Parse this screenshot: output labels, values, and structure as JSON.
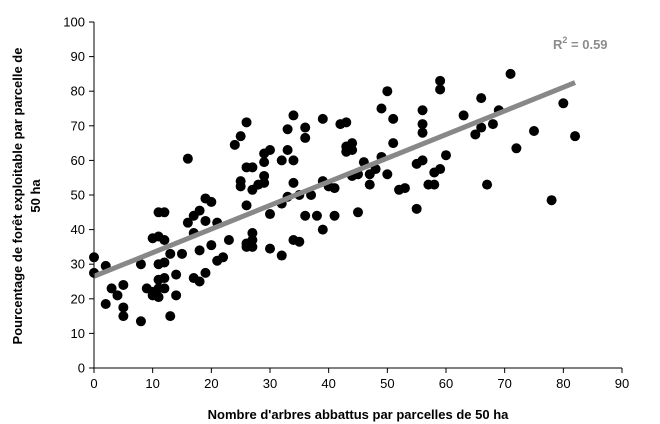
{
  "chart_data": {
    "type": "scatter",
    "xlabel": "Nombre d'arbres abbattus par parcelles de 50 ha",
    "ylabel_lines": [
      "Pourcentage de forêt exploitable par parcelle de",
      "50 ha"
    ],
    "xlim": [
      0,
      90
    ],
    "ylim": [
      0,
      100
    ],
    "xticks": [
      0,
      10,
      20,
      30,
      40,
      50,
      60,
      70,
      80,
      90
    ],
    "yticks": [
      0,
      10,
      20,
      30,
      40,
      50,
      60,
      70,
      80,
      90,
      100
    ],
    "grid": false,
    "point_color": "#000000",
    "trendline": {
      "x": [
        0,
        82
      ],
      "y": [
        26.5,
        82.5
      ],
      "color": "#888888",
      "label_prefix": "R",
      "label_sup": "2",
      "label_suffix": " = 0.59"
    },
    "points": [
      [
        0,
        32
      ],
      [
        0,
        27.5
      ],
      [
        2,
        29.5
      ],
      [
        2,
        18.5
      ],
      [
        3,
        23
      ],
      [
        4,
        21
      ],
      [
        5,
        24
      ],
      [
        5,
        17.5
      ],
      [
        5,
        15
      ],
      [
        8,
        30
      ],
      [
        8,
        13.5
      ],
      [
        9,
        23
      ],
      [
        10,
        37.5
      ],
      [
        10,
        22
      ],
      [
        10,
        21
      ],
      [
        11,
        45
      ],
      [
        11,
        38
      ],
      [
        11,
        30
      ],
      [
        11,
        25.5
      ],
      [
        11,
        23
      ],
      [
        11,
        20.5
      ],
      [
        12,
        45
      ],
      [
        12,
        37
      ],
      [
        12,
        30.5
      ],
      [
        12,
        26
      ],
      [
        12,
        23
      ],
      [
        13,
        33
      ],
      [
        13,
        15
      ],
      [
        14,
        27
      ],
      [
        14,
        21
      ],
      [
        15,
        33
      ],
      [
        16,
        60.5
      ],
      [
        16,
        42
      ],
      [
        17,
        44
      ],
      [
        17,
        39
      ],
      [
        17,
        26
      ],
      [
        18,
        45.5
      ],
      [
        18,
        34
      ],
      [
        18,
        25
      ],
      [
        19,
        49
      ],
      [
        19,
        42.5
      ],
      [
        19,
        27.5
      ],
      [
        20,
        48
      ],
      [
        20,
        35.5
      ],
      [
        21,
        42
      ],
      [
        21,
        31
      ],
      [
        22,
        32
      ],
      [
        23,
        37
      ],
      [
        24,
        64.5
      ],
      [
        25,
        67
      ],
      [
        25,
        54
      ],
      [
        25,
        52.5
      ],
      [
        26,
        71
      ],
      [
        26,
        58
      ],
      [
        26,
        47
      ],
      [
        26,
        36
      ],
      [
        26,
        35
      ],
      [
        27,
        58
      ],
      [
        27,
        51.5
      ],
      [
        27,
        39
      ],
      [
        27,
        37
      ],
      [
        27,
        35
      ],
      [
        28,
        53
      ],
      [
        29,
        62
      ],
      [
        29,
        59.5
      ],
      [
        29,
        55.5
      ],
      [
        29,
        53.5
      ],
      [
        30,
        63
      ],
      [
        30,
        44.5
      ],
      [
        30,
        34.5
      ],
      [
        32,
        60
      ],
      [
        32,
        47.5
      ],
      [
        32,
        32.5
      ],
      [
        33,
        69
      ],
      [
        33,
        63
      ],
      [
        33,
        49.5
      ],
      [
        34,
        73
      ],
      [
        34,
        60
      ],
      [
        34,
        53.5
      ],
      [
        34,
        37
      ],
      [
        35,
        50
      ],
      [
        35,
        36.5
      ],
      [
        36,
        69.5
      ],
      [
        36,
        66.5
      ],
      [
        36,
        44
      ],
      [
        37,
        50
      ],
      [
        38,
        44
      ],
      [
        39,
        72
      ],
      [
        39,
        54
      ],
      [
        39,
        40
      ],
      [
        40,
        52.5
      ],
      [
        41,
        52
      ],
      [
        41,
        44
      ],
      [
        42,
        70.5
      ],
      [
        43,
        71
      ],
      [
        43,
        64
      ],
      [
        43,
        62.5
      ],
      [
        44,
        63
      ],
      [
        44,
        65
      ],
      [
        44,
        55.5
      ],
      [
        45,
        45
      ],
      [
        45,
        56
      ],
      [
        46,
        59.5
      ],
      [
        47,
        56
      ],
      [
        47,
        53
      ],
      [
        48,
        57.5
      ],
      [
        49,
        75
      ],
      [
        49,
        61
      ],
      [
        50,
        80
      ],
      [
        50,
        56
      ],
      [
        51,
        72
      ],
      [
        51,
        65
      ],
      [
        52,
        51.5
      ],
      [
        53,
        52
      ],
      [
        55,
        46
      ],
      [
        55,
        59
      ],
      [
        56,
        74.5
      ],
      [
        56,
        70.5
      ],
      [
        56,
        68
      ],
      [
        56,
        60
      ],
      [
        57,
        53
      ],
      [
        58,
        56.5
      ],
      [
        58,
        53
      ],
      [
        59,
        83
      ],
      [
        59,
        80.5
      ],
      [
        59,
        57.5
      ],
      [
        60,
        61.5
      ],
      [
        63,
        73
      ],
      [
        65,
        67.5
      ],
      [
        66,
        78
      ],
      [
        66,
        69.5
      ],
      [
        67,
        53
      ],
      [
        68,
        70.5
      ],
      [
        69,
        74.5
      ],
      [
        71,
        85
      ],
      [
        72,
        63.5
      ],
      [
        75,
        68.5
      ],
      [
        78,
        48.5
      ],
      [
        80,
        76.5
      ],
      [
        82,
        67
      ]
    ]
  }
}
